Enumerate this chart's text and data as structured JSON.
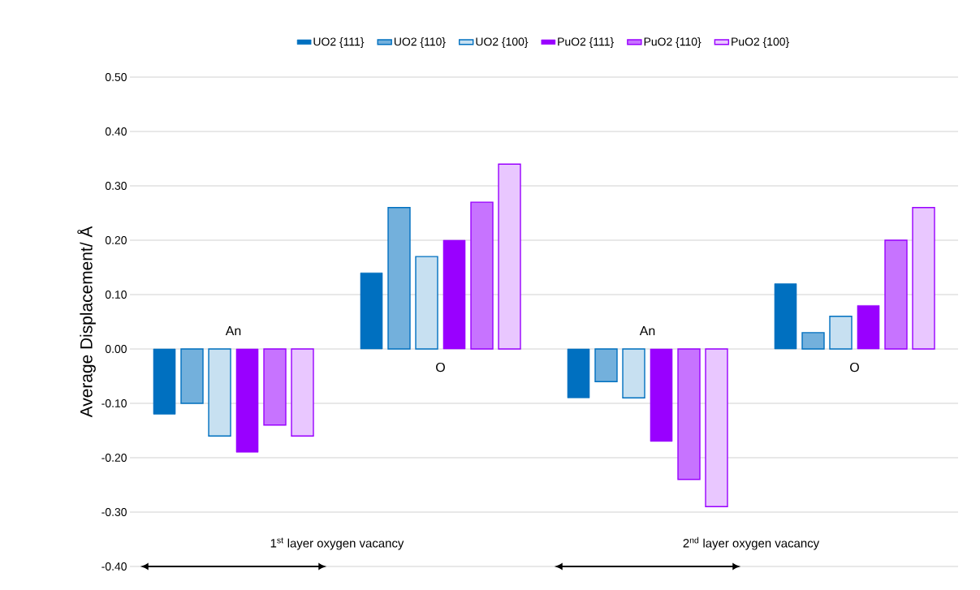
{
  "chart_data": {
    "type": "bar",
    "categories": [
      null,
      null,
      null,
      null
    ],
    "series": [
      {
        "name": "UO2 {111}",
        "color": "#0070c0",
        "values": [
          -0.12,
          0.14,
          -0.09,
          0.12
        ]
      },
      {
        "name": "UO2 {110}",
        "color": "#0070c0",
        "values": [
          -0.1,
          0.26,
          -0.06,
          0.03
        ]
      },
      {
        "name": "UO2 {100}",
        "color": "#0070c0",
        "values": [
          -0.16,
          0.17,
          -0.09,
          0.06
        ]
      },
      {
        "name": "PuO2 {111}",
        "color": "#9900ff",
        "values": [
          -0.19,
          0.2,
          -0.17,
          0.08
        ]
      },
      {
        "name": "PuO2 {110}",
        "color": "#9900ff",
        "values": [
          -0.14,
          0.27,
          -0.24,
          0.2
        ]
      },
      {
        "name": "PuO2 {100}",
        "color": "#9900ff",
        "values": [
          -0.16,
          0.34,
          -0.29,
          0.26
        ]
      }
    ],
    "ylabel": "Average Displacement/ Å",
    "ylim": [
      -0.4,
      0.5
    ],
    "yticks": [
      {
        "value": -0.4,
        "label": "-0.40"
      },
      {
        "value": -0.3,
        "label": "-0.30"
      },
      {
        "value": -0.2,
        "label": "-0.20"
      },
      {
        "value": -0.1,
        "label": "-0.10"
      },
      {
        "value": 0,
        "label": "0.00"
      },
      {
        "value": 0.1,
        "label": "0.10"
      },
      {
        "value": 0.2,
        "label": "0.20"
      },
      {
        "value": 0.3,
        "label": "0.30"
      },
      {
        "value": 0.4,
        "label": "0.40"
      },
      {
        "value": 0.5,
        "label": "0.50"
      }
    ],
    "annotations": [
      "An",
      "O",
      "An",
      "O",
      "1$^{st}$ layer oxygen vacancy",
      "2$^{nd}$ layer oxygen vacancy"
    ],
    "grid": "y",
    "legend": "top"
  }
}
